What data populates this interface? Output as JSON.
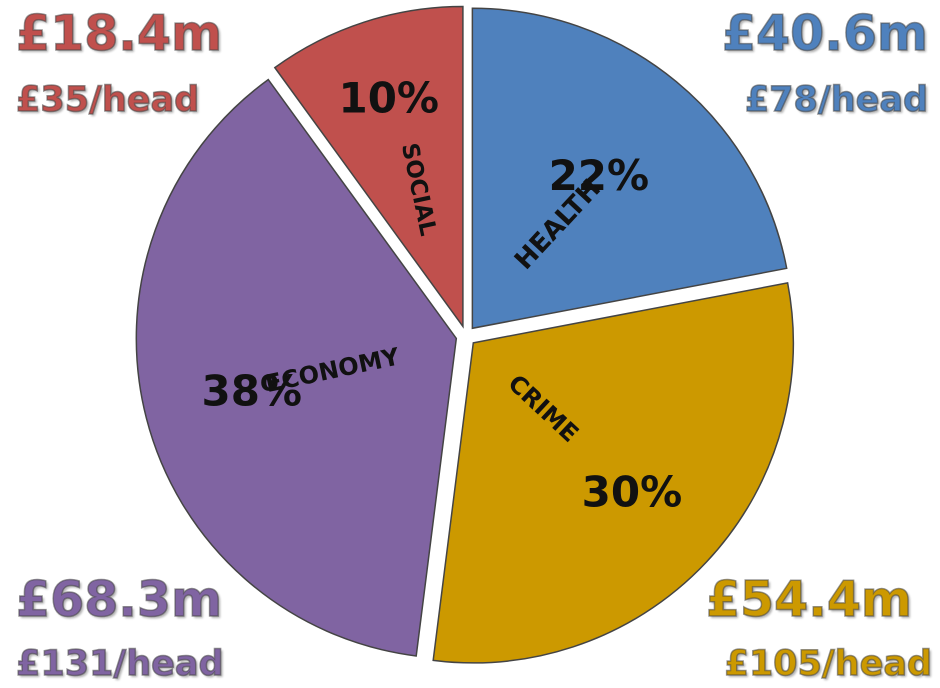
{
  "chart_data": {
    "type": "pie",
    "slices": [
      {
        "label": "HEALTH",
        "percent": "22%",
        "value": 22,
        "amount": "£40.6m",
        "per_head": "£78/head",
        "color": "#4F81BD"
      },
      {
        "label": "CRIME",
        "percent": "30%",
        "value": 30,
        "amount": "£54.4m",
        "per_head": "£105/head",
        "color": "#CC9900"
      },
      {
        "label": "ECONOMY",
        "percent": "38%",
        "value": 38,
        "amount": "£68.3m",
        "per_head": "£131/head",
        "color": "#8064A2"
      },
      {
        "label": "SOCIAL",
        "percent": "10%",
        "value": 10,
        "amount": "£18.4m",
        "per_head": "£35/head",
        "color": "#C0504D"
      }
    ],
    "legend": "none"
  }
}
